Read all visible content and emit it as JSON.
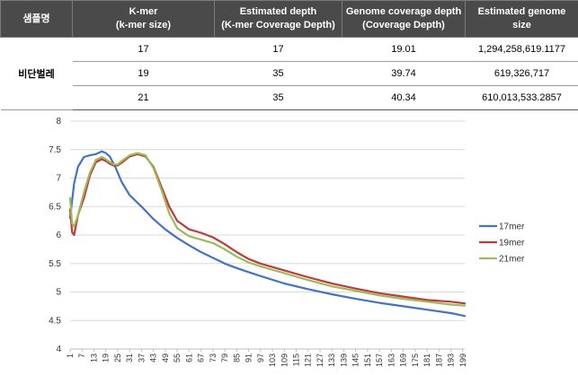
{
  "table": {
    "headers": [
      "샘플명",
      "K-mer\n(k-mer size)",
      "Estimated depth\n(K-mer Coverage Depth)",
      "Genome coverage depth\n(Coverage Depth)",
      "Estimated genome\nsize"
    ],
    "sample": "비단벌레",
    "rows": [
      {
        "kmer": "17",
        "depth": "17",
        "coverage": "19.01",
        "size": "1,294,258,619.1177"
      },
      {
        "kmer": "19",
        "depth": "35",
        "coverage": "39.74",
        "size": "619,326,717"
      },
      {
        "kmer": "21",
        "depth": "35",
        "coverage": "40.34",
        "size": "610,013,533.2857"
      }
    ]
  },
  "chart_data": {
    "type": "line",
    "title": "",
    "xlabel": "",
    "ylabel": "",
    "ylim": [
      4,
      8
    ],
    "yticks": [
      "4",
      "4.5",
      "5",
      "5.5",
      "6",
      "6.5",
      "7",
      "7.5",
      "8"
    ],
    "xlim": [
      1,
      200
    ],
    "xticks": [
      "1",
      "7",
      "13",
      "19",
      "25",
      "31",
      "37",
      "43",
      "49",
      "55",
      "61",
      "67",
      "73",
      "79",
      "85",
      "91",
      "97",
      "103",
      "109",
      "115",
      "121",
      "127",
      "133",
      "139",
      "145",
      "151",
      "157",
      "163",
      "169",
      "175",
      "181",
      "187",
      "193",
      "199"
    ],
    "grid": "horizontal",
    "legend": "right",
    "series": [
      {
        "name": "17mer",
        "color": "#4472c4",
        "x": [
          1,
          3,
          5,
          8,
          11,
          14,
          17,
          19,
          21,
          24,
          27,
          31,
          37,
          43,
          49,
          55,
          61,
          67,
          73,
          79,
          85,
          91,
          97,
          109,
          121,
          133,
          145,
          157,
          169,
          181,
          193,
          200
        ],
        "y": [
          6.3,
          6.9,
          7.2,
          7.37,
          7.4,
          7.42,
          7.47,
          7.44,
          7.38,
          7.18,
          6.93,
          6.7,
          6.5,
          6.28,
          6.1,
          5.95,
          5.82,
          5.7,
          5.6,
          5.5,
          5.42,
          5.35,
          5.28,
          5.15,
          5.05,
          4.96,
          4.88,
          4.81,
          4.75,
          4.69,
          4.63,
          4.58
        ]
      },
      {
        "name": "19mer",
        "color": "#c0393b",
        "x": [
          1,
          2,
          3,
          5,
          8,
          11,
          14,
          17,
          19,
          21,
          23,
          25,
          27,
          31,
          35,
          39,
          43,
          47,
          51,
          55,
          61,
          67,
          73,
          79,
          85,
          91,
          97,
          109,
          121,
          133,
          145,
          157,
          169,
          181,
          193,
          200
        ],
        "y": [
          6.45,
          6.05,
          6.0,
          6.35,
          6.65,
          7.05,
          7.28,
          7.33,
          7.3,
          7.25,
          7.22,
          7.22,
          7.27,
          7.38,
          7.42,
          7.38,
          7.2,
          6.85,
          6.5,
          6.25,
          6.1,
          6.04,
          5.96,
          5.84,
          5.7,
          5.58,
          5.5,
          5.38,
          5.26,
          5.15,
          5.06,
          4.98,
          4.92,
          4.86,
          4.83,
          4.8
        ]
      },
      {
        "name": "21mer",
        "color": "#9bbb59",
        "x": [
          1,
          2,
          3,
          5,
          8,
          11,
          14,
          17,
          19,
          21,
          23,
          25,
          27,
          31,
          35,
          39,
          43,
          47,
          51,
          55,
          61,
          67,
          73,
          79,
          85,
          91,
          97,
          109,
          121,
          133,
          145,
          157,
          169,
          181,
          193,
          200
        ],
        "y": [
          6.65,
          6.2,
          6.15,
          6.35,
          6.75,
          7.1,
          7.32,
          7.37,
          7.33,
          7.28,
          7.24,
          7.24,
          7.3,
          7.4,
          7.44,
          7.4,
          7.18,
          6.8,
          6.38,
          6.12,
          5.98,
          5.92,
          5.86,
          5.75,
          5.62,
          5.52,
          5.45,
          5.33,
          5.21,
          5.1,
          5.02,
          4.94,
          4.88,
          4.83,
          4.78,
          4.76
        ]
      }
    ]
  }
}
